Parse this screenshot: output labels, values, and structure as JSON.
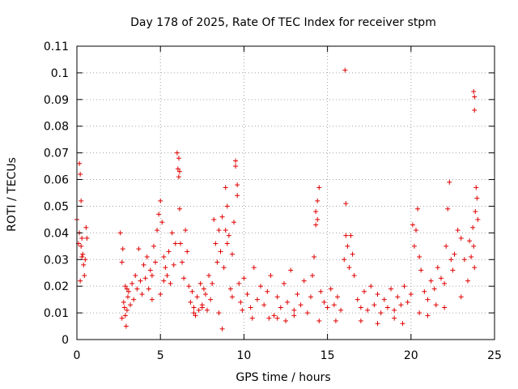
{
  "chart_data": {
    "type": "scatter",
    "title": "Day 178 of 2025, Rate Of TEC Index for receiver stpm",
    "xlabel": "GPS time / hours",
    "ylabel": "ROTI / TECUs",
    "xlim": [
      0,
      25
    ],
    "ylim": [
      0,
      0.11
    ],
    "xticks": [
      "0",
      "5",
      "10",
      "15",
      "20",
      "25"
    ],
    "yticks": [
      "0",
      "0.01",
      "0.02",
      "0.03",
      "0.04",
      "0.05",
      "0.06",
      "0.07",
      "0.08",
      "0.09",
      "0.1",
      "0.11"
    ],
    "grid": true,
    "marker": "+",
    "color": "#e00000",
    "x": [
      0.0,
      0.1,
      0.15,
      0.2,
      0.25,
      0.3,
      0.35,
      0.4,
      0.45,
      0.5,
      0.55,
      0.6,
      0.2,
      0.25,
      0.15,
      0.3,
      2.6,
      2.7,
      2.75,
      2.8,
      2.85,
      2.9,
      2.95,
      3.0,
      3.05,
      3.1,
      3.2,
      3.3,
      3.4,
      3.5,
      3.6,
      3.7,
      3.8,
      3.9,
      4.0,
      4.1,
      4.2,
      4.3,
      4.4,
      4.5,
      4.6,
      4.7,
      4.8,
      4.9,
      5.0,
      5.1,
      5.2,
      5.3,
      5.4,
      5.5,
      5.6,
      5.7,
      5.8,
      5.9,
      6.0,
      6.05,
      6.1,
      6.15,
      6.2,
      6.3,
      6.4,
      6.5,
      6.6,
      6.7,
      6.8,
      6.9,
      7.0,
      7.1,
      7.2,
      7.3,
      7.4,
      7.5,
      7.6,
      7.7,
      7.8,
      7.9,
      8.0,
      8.1,
      8.2,
      8.3,
      8.4,
      8.5,
      8.6,
      8.7,
      8.8,
      8.9,
      9.0,
      9.1,
      9.2,
      9.3,
      9.4,
      9.5,
      9.6,
      9.7,
      9.8,
      9.9,
      10.0,
      10.2,
      10.4,
      10.6,
      10.8,
      11.0,
      11.2,
      11.4,
      11.6,
      11.8,
      12.0,
      12.2,
      12.4,
      12.6,
      12.8,
      13.0,
      13.2,
      13.4,
      13.6,
      13.8,
      14.0,
      14.1,
      14.2,
      14.3,
      14.4,
      14.5,
      14.6,
      14.8,
      15.0,
      15.2,
      15.4,
      15.6,
      15.8,
      16.0,
      16.1,
      16.2,
      16.3,
      16.4,
      16.5,
      16.6,
      16.8,
      17.0,
      17.2,
      17.4,
      17.6,
      17.8,
      18.0,
      18.2,
      18.4,
      18.6,
      18.8,
      19.0,
      19.2,
      19.4,
      19.6,
      19.8,
      20.0,
      20.1,
      20.2,
      20.3,
      20.4,
      20.5,
      20.6,
      20.8,
      21.0,
      21.2,
      21.4,
      21.6,
      21.8,
      22.0,
      22.1,
      22.2,
      22.3,
      22.4,
      22.5,
      22.6,
      22.8,
      23.0,
      23.2,
      23.4,
      23.5,
      23.6,
      23.7,
      23.75,
      23.8,
      23.85,
      23.9,
      23.95,
      24.0,
      16.05,
      23.75,
      23.8,
      23.8,
      6.1,
      6.15,
      9.5,
      9.6,
      8.9,
      9.0,
      14.3,
      14.4,
      16.1,
      2.7,
      2.9,
      3.0,
      5.0,
      5.2,
      8.5,
      8.7,
      9.3,
      12.0,
      12.5,
      13.0,
      14.5,
      18.0,
      19.5,
      21.0,
      22.0,
      23.0,
      10.5,
      11.5,
      15.5,
      17.0,
      19.0,
      20.5,
      21.5,
      7.0,
      7.5,
      4.5
    ],
    "y": [
      0.045,
      0.036,
      0.066,
      0.062,
      0.052,
      0.038,
      0.032,
      0.028,
      0.024,
      0.03,
      0.042,
      0.038,
      0.022,
      0.035,
      0.04,
      0.031,
      0.04,
      0.029,
      0.034,
      0.014,
      0.012,
      0.009,
      0.005,
      0.011,
      0.016,
      0.018,
      0.013,
      0.021,
      0.015,
      0.024,
      0.019,
      0.034,
      0.022,
      0.017,
      0.028,
      0.023,
      0.031,
      0.019,
      0.026,
      0.024,
      0.035,
      0.029,
      0.041,
      0.047,
      0.052,
      0.044,
      0.031,
      0.027,
      0.024,
      0.033,
      0.021,
      0.04,
      0.028,
      0.036,
      0.07,
      0.064,
      0.061,
      0.049,
      0.036,
      0.029,
      0.023,
      0.041,
      0.033,
      0.02,
      0.014,
      0.018,
      0.012,
      0.009,
      0.016,
      0.011,
      0.021,
      0.013,
      0.019,
      0.017,
      0.011,
      0.024,
      0.015,
      0.021,
      0.045,
      0.036,
      0.029,
      0.041,
      0.033,
      0.046,
      0.027,
      0.057,
      0.05,
      0.039,
      0.019,
      0.032,
      0.044,
      0.067,
      0.058,
      0.021,
      0.014,
      0.011,
      0.023,
      0.017,
      0.012,
      0.027,
      0.015,
      0.02,
      0.013,
      0.018,
      0.024,
      0.009,
      0.016,
      0.012,
      0.021,
      0.014,
      0.026,
      0.011,
      0.017,
      0.013,
      0.022,
      0.01,
      0.016,
      0.024,
      0.031,
      0.043,
      0.052,
      0.057,
      0.018,
      0.014,
      0.012,
      0.019,
      0.013,
      0.016,
      0.011,
      0.03,
      0.051,
      0.035,
      0.027,
      0.039,
      0.032,
      0.024,
      0.015,
      0.012,
      0.018,
      0.011,
      0.02,
      0.013,
      0.017,
      0.01,
      0.015,
      0.012,
      0.019,
      0.011,
      0.016,
      0.013,
      0.02,
      0.014,
      0.017,
      0.043,
      0.035,
      0.041,
      0.049,
      0.031,
      0.026,
      0.018,
      0.015,
      0.022,
      0.019,
      0.027,
      0.023,
      0.021,
      0.035,
      0.049,
      0.059,
      0.03,
      0.026,
      0.032,
      0.041,
      0.038,
      0.03,
      0.022,
      0.037,
      0.031,
      0.042,
      0.035,
      0.027,
      0.048,
      0.057,
      0.053,
      0.045,
      0.101,
      0.093,
      0.091,
      0.086,
      0.068,
      0.063,
      0.065,
      0.054,
      0.041,
      0.036,
      0.048,
      0.045,
      0.039,
      0.008,
      0.02,
      0.019,
      0.017,
      0.022,
      0.01,
      0.004,
      0.016,
      0.008,
      0.007,
      0.009,
      0.007,
      0.006,
      0.006,
      0.009,
      0.012,
      0.016,
      0.008,
      0.008,
      0.007,
      0.007,
      0.008,
      0.01,
      0.013,
      0.01,
      0.012,
      0.015
    ]
  }
}
